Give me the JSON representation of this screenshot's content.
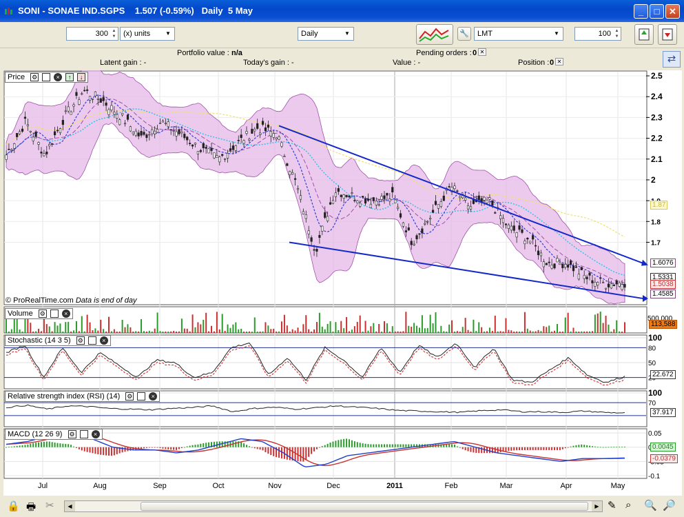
{
  "window": {
    "title": "SONI - SONAE IND.SGPS    1.507 (-0.59%)   Daily  5 May",
    "minimize": "_",
    "maximize": "□",
    "close": "✕"
  },
  "toolbar": {
    "quantity": "300",
    "units": "(x) units",
    "period": "Daily",
    "order_type": "LMT",
    "limit_value": "100"
  },
  "info": {
    "portfolio_value_label": "Portfolio value : ",
    "portfolio_value": "n/a",
    "pending_orders_label": "Pending orders : ",
    "pending_orders": "0",
    "latent_gain": "Latent gain : -",
    "todays_gain": "Today's gain : -",
    "value": "Value : -",
    "position_label": "Position : ",
    "position": "0"
  },
  "panels": {
    "price": "Price",
    "volume": "Volume",
    "stochastic": "Stochastic (14 3 5)",
    "rsi": "Relative strength index (RSI) (14)",
    "macd": "MACD (12 26 9)"
  },
  "footer_note": "© ProRealTime.com",
  "footer_note2": "Data is end of day",
  "chart_data": [
    {
      "type": "candlestick",
      "name": "Price",
      "x_labels": [
        "Jul",
        "Aug",
        "Sep",
        "Oct",
        "Nov",
        "Dec",
        "2011",
        "Feb",
        "Mar",
        "Apr",
        "May"
      ],
      "ylim": [
        1.4,
        2.52
      ],
      "y_ticks": [
        "2.5",
        "2.4",
        "2.3",
        "2.2",
        "2.1",
        "2",
        "1.9",
        "1.8",
        "1.7"
      ],
      "close_path": [
        2.12,
        2.28,
        2.12,
        2.3,
        2.43,
        2.38,
        2.3,
        2.2,
        2.28,
        2.22,
        2.15,
        2.1,
        2.18,
        2.25,
        2.22,
        1.98,
        1.66,
        1.95,
        1.92,
        1.9,
        1.92,
        1.7,
        1.83,
        1.97,
        1.87,
        1.9,
        1.77,
        1.72,
        1.6,
        1.6,
        1.53,
        1.5,
        1.507
      ],
      "value_tags": [
        "1.6076",
        "1.5331",
        "1.5038",
        "1.4585"
      ],
      "overlay_label": "1.87",
      "trendlines": "upper line from Nov high to May; lower line from late Nov low to May",
      "colors": {
        "bands": "#e6b8e8",
        "band_edge": "#a050a8",
        "trend": "#1428c8",
        "ma_long": "#f0e070",
        "ma_mid": "#30c0e8",
        "ma_short": "#3040d0",
        "up": "#2a9a2a",
        "down": "#c83030"
      }
    },
    {
      "type": "bar",
      "name": "Volume",
      "y_ticks": [
        "500,000"
      ],
      "last_value": "113,588"
    },
    {
      "type": "line",
      "name": "Stochastic (14 3 5)",
      "y_ticks": [
        "100",
        "80",
        "50",
        "20"
      ],
      "last_value": "22.672",
      "series": [
        {
          "values": [
            70,
            85,
            20,
            80,
            30,
            70,
            45,
            20,
            55,
            50,
            20,
            30,
            80,
            90,
            25,
            60,
            15,
            80,
            55,
            20,
            80,
            30,
            85,
            60,
            90,
            40,
            80,
            15,
            10,
            35,
            60,
            25,
            10,
            22
          ]
        }
      ]
    },
    {
      "type": "line",
      "name": "Relative strength index (RSI) (14)",
      "y_ticks": [
        "100",
        "70"
      ],
      "last_value": "37.917",
      "series": [
        {
          "values": [
            55,
            62,
            50,
            60,
            58,
            52,
            50,
            48,
            52,
            55,
            60,
            42,
            52,
            56,
            50,
            54,
            60,
            56,
            52,
            46,
            44,
            42,
            40,
            45,
            48,
            42,
            42,
            40,
            44,
            40,
            38
          ]
        }
      ]
    },
    {
      "type": "line",
      "name": "MACD (12 26 9)",
      "y_ticks": [
        "0.05",
        "0",
        "-0.05",
        "-0.1"
      ],
      "value_tags": [
        "0.0045",
        "-0.0379"
      ],
      "series": [
        {
          "values": [
            0.01,
            0.02,
            0.04,
            0.05,
            0.03,
            0.0,
            -0.01,
            -0.01,
            -0.02,
            -0.01,
            0.01,
            0.03,
            0.02,
            -0.02,
            -0.07,
            -0.06,
            -0.03,
            -0.02,
            -0.01,
            0.0,
            0.01,
            0.02,
            0.0,
            -0.02,
            -0.03,
            -0.04,
            -0.05,
            -0.04,
            -0.04,
            -0.038
          ]
        }
      ]
    }
  ]
}
